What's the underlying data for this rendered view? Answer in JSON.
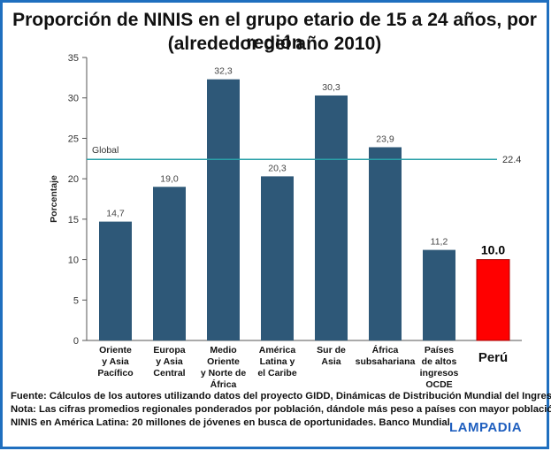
{
  "title_line1": "Proporción de NINIS en el grupo etario de 15 a 24 años, por región",
  "title_line2": "(alrededor del año 2010)",
  "colors": {
    "bar": "#2e5878",
    "highlight": "#ff0000",
    "reference_line": "#2aa0a8",
    "frame": "#1f6fbf",
    "brand": "#1f5fbf"
  },
  "chart_data": {
    "type": "bar",
    "ylabel": "Porcentaje",
    "ylim": [
      0,
      35
    ],
    "yticks": [
      0,
      5,
      10,
      15,
      20,
      25,
      30,
      35
    ],
    "grid": false,
    "categories": [
      [
        "Oriente",
        "y Asia",
        "Pacífico"
      ],
      [
        "Europa",
        "y Asia",
        "Central"
      ],
      [
        "Medio",
        "Oriente",
        "y Norte de",
        "África"
      ],
      [
        "América",
        "Latina y",
        "el Caribe"
      ],
      [
        "Sur de",
        "Asia"
      ],
      [
        "África",
        "subsahariana"
      ],
      [
        "Países",
        "de altos",
        "ingresos",
        "OCDE"
      ],
      [
        "Perú"
      ]
    ],
    "values": [
      14.7,
      19.0,
      32.3,
      20.3,
      30.3,
      23.9,
      11.2,
      10.0
    ],
    "value_labels": [
      "14,7",
      "19,0",
      "32,3",
      "20,3",
      "30,3",
      "23,9",
      "11,2",
      "10.0"
    ],
    "highlight_index": 7,
    "reference_line": {
      "label": "Global",
      "value": 22.4,
      "value_label": "22.4"
    }
  },
  "footer": {
    "source": "Fuente: Cálculos de los autores utilizando datos del proyecto GIDD, Dinámicas de Distribución Mundial del Ingreso",
    "note": "Nota: Las cifras promedios regionales ponderados por población, dándole más peso a países con mayor población",
    "ninis": "NINIS en América Latina: 20 millones de jóvenes en busca de oportunidades. Banco Mundial",
    "brand": "LAMPADIA"
  }
}
